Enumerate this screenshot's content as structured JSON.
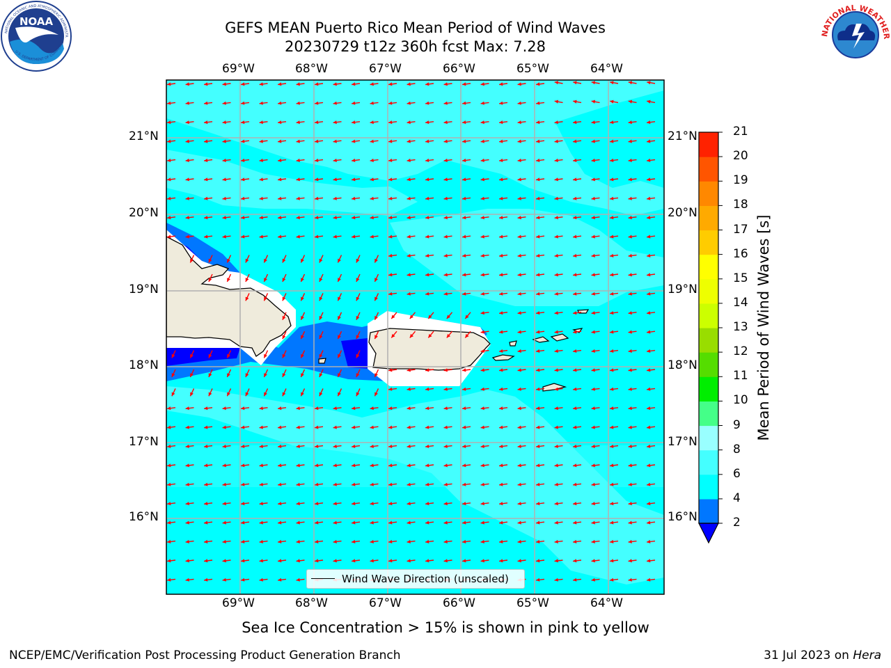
{
  "header": {
    "title_line1": "GEFS MEAN Puerto Rico Mean Period of Wind Waves",
    "title_line2": "20230729 t12z 360h fcst   Max: 7.28"
  },
  "logos": {
    "noara_text": "NOAA",
    "noaa_ring_top": "NATIONAL OCEANIC AND ATMOSPHERIC ADMINISTRATION",
    "noaa_ring_bottom": "U.S. DEPARTMENT OF COMMERCE",
    "nws_ring_text": "NATIONAL WEATHER SERVICE"
  },
  "map": {
    "lon_labels": [
      "69°W",
      "68°W",
      "67°W",
      "66°W",
      "65°W",
      "64°W"
    ],
    "lat_labels": [
      "21°N",
      "20°N",
      "19°N",
      "18°N",
      "17°N",
      "16°N"
    ],
    "land_color": "#efebdc",
    "coast_color": "#000000",
    "arrow_color": "#ff0000",
    "grid_color": "#b0b0b0",
    "legend_label": "Wind Wave Direction (unscaled)",
    "footnote": "Sea Ice Concentration > 15% is shown in pink to yellow"
  },
  "colorbar": {
    "label": "Mean Period of Wind Waves [s]",
    "ticks": [
      "2",
      "4",
      "6",
      "8",
      "9",
      "10",
      "11",
      "12",
      "13",
      "14",
      "15",
      "16",
      "17",
      "18",
      "19",
      "20",
      "21"
    ],
    "colors": [
      "#0000ff",
      "#0077ff",
      "#00ffff",
      "#44ffff",
      "#99ffff",
      "#44ff88",
      "#00ee00",
      "#55dd00",
      "#99dd00",
      "#ccff00",
      "#eeff00",
      "#ffff00",
      "#ffcc00",
      "#ffaa00",
      "#ff8800",
      "#ff5500",
      "#ff2200",
      "#ff0000"
    ]
  },
  "footer": {
    "left": "NCEP/EMC/Verification Post Processing Product Generation Branch",
    "right_date": "31 Jul 2023 on ",
    "right_host": "Hera"
  }
}
